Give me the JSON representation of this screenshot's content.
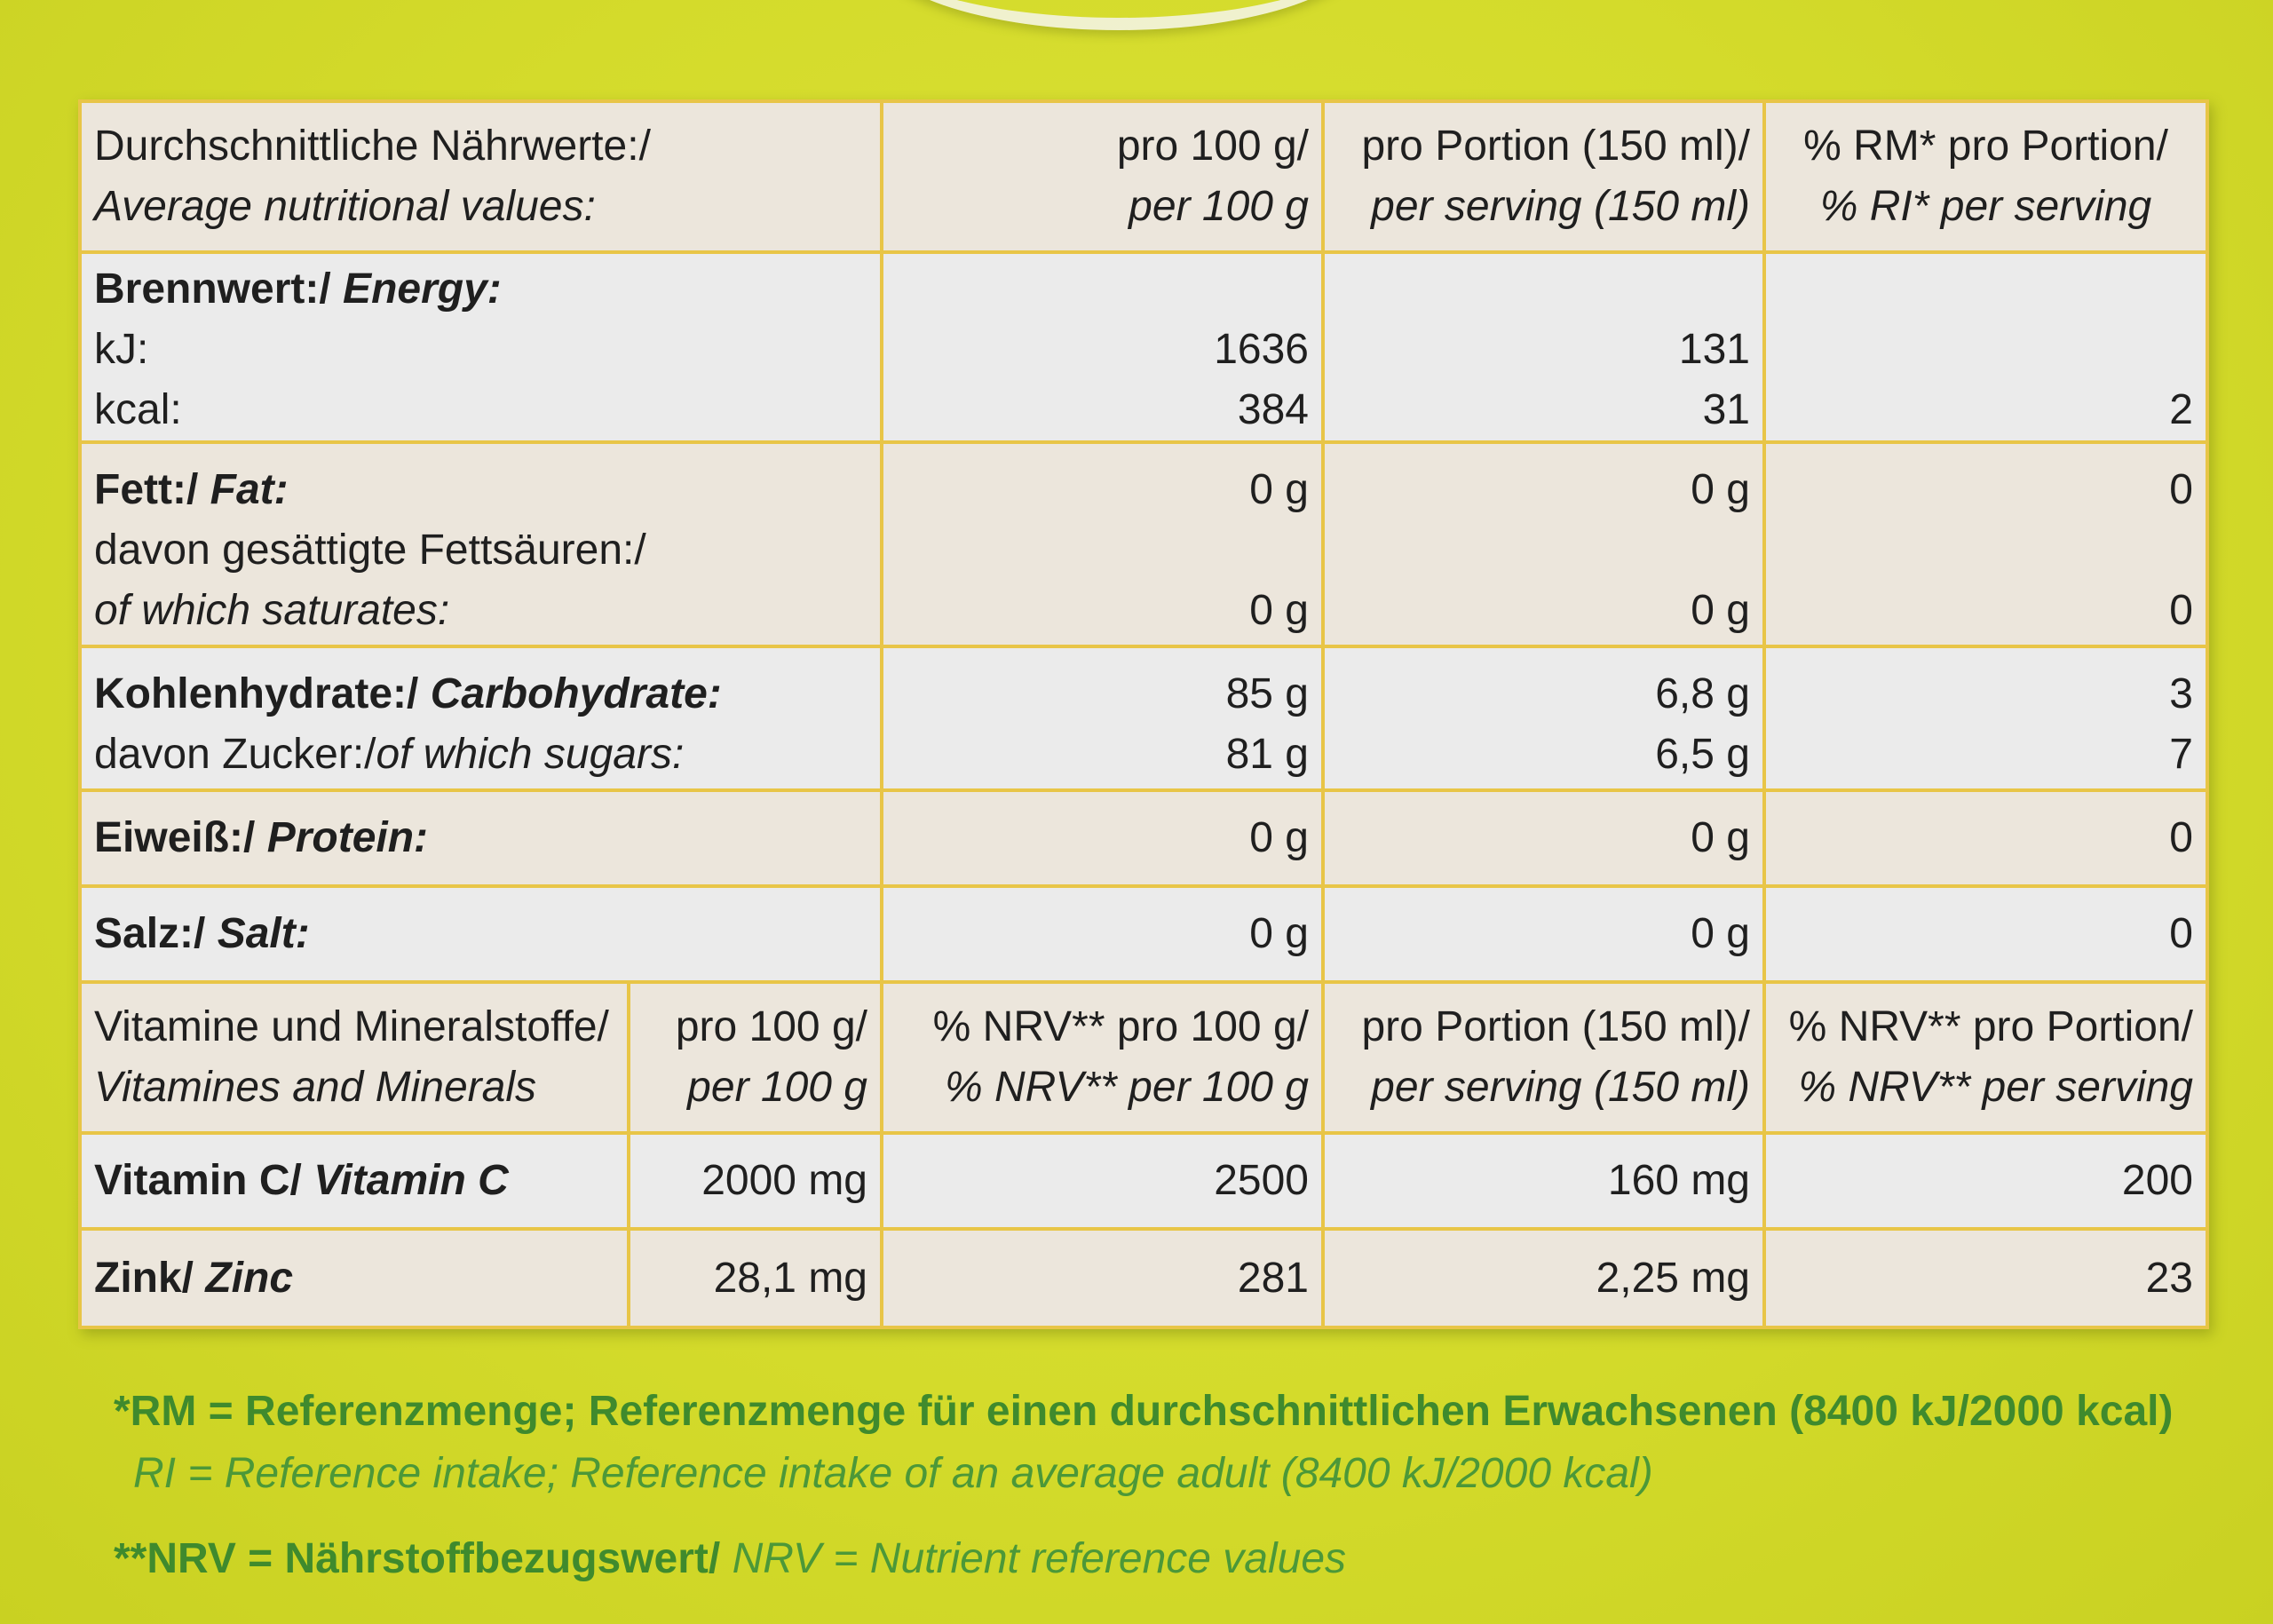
{
  "header": {
    "label_de": "Durchschnittliche Nährwerte:/",
    "label_en": "Average nutritional values:",
    "per100_de": "pro 100 g/",
    "per100_en": "per 100 g",
    "portion_de": "pro Portion (150 ml)/",
    "portion_en": "per serving (150 ml)",
    "ri_de": "% RM* pro Portion/",
    "ri_en": "% RI* per serving"
  },
  "energy": {
    "title_de": "Brennwert:/",
    "title_en": "Energy:",
    "kj_label": "kJ:",
    "kcal_label": "kcal:",
    "kj_100": "1636",
    "kcal_100": "384",
    "kj_portion": "131",
    "kcal_portion": "31",
    "kcal_ri": "2"
  },
  "fat": {
    "title_de": "Fett:/",
    "title_en": "Fat:",
    "sat_de": "davon gesättigte Fettsäuren:/",
    "sat_en": "of which saturates:",
    "per100": "0 g",
    "portion": "0 g",
    "ri": "0",
    "sat_per100": "0 g",
    "sat_portion": "0 g",
    "sat_ri": "0"
  },
  "carbs": {
    "title_de": "Kohlenhydrate:/",
    "title_en": "Carbohydrate:",
    "sugar_de": "davon Zucker:/",
    "sugar_en": "of which sugars:",
    "per100": "85 g",
    "portion": "6,8 g",
    "ri": "3",
    "sugar_per100": "81 g",
    "sugar_portion": "6,5 g",
    "sugar_ri": "7"
  },
  "protein": {
    "title_de": "Eiweiß:/",
    "title_en": "Protein:",
    "per100": "0 g",
    "portion": "0 g",
    "ri": "0"
  },
  "salt": {
    "title_de": "Salz:/",
    "title_en": "Salt:",
    "per100": "0 g",
    "portion": "0 g",
    "ri": "0"
  },
  "vitamins_header": {
    "label_de": "Vitamine und Mineralstoffe/",
    "label_en": "Vitamines and Minerals",
    "per100_de": "pro 100 g/",
    "per100_en": "per 100 g",
    "nrv100_de": "% NRV** pro 100 g/",
    "nrv100_en": "% NRV** per 100 g",
    "portion_de": "pro Portion (150 ml)/",
    "portion_en": "per serving (150 ml)",
    "nrvportion_de": "% NRV** pro Portion/",
    "nrvportion_en": "% NRV** per serving"
  },
  "vitamin_c": {
    "title_de": "Vitamin C/",
    "title_en": "Vitamin C",
    "per100": "2000 mg",
    "nrv100": "2500",
    "portion": "160 mg",
    "nrvportion": "200"
  },
  "zinc": {
    "title_de": "Zink/",
    "title_en": "Zinc",
    "per100": "28,1 mg",
    "nrv100": "281",
    "portion": "2,25 mg",
    "nrvportion": "23"
  },
  "footnotes": {
    "rm_de": "*RM = Referenzmenge; Referenzmenge für einen durchschnittlichen Erwachsenen (8400 kJ/2000 kcal)",
    "ri_en": "RI = Reference intake; Reference intake of an average adult (8400 kJ/2000 kcal)",
    "nrv_de": "**NRV = Nährstoffbezugswert/",
    "nrv_en": "NRV = Nutrient reference values"
  }
}
